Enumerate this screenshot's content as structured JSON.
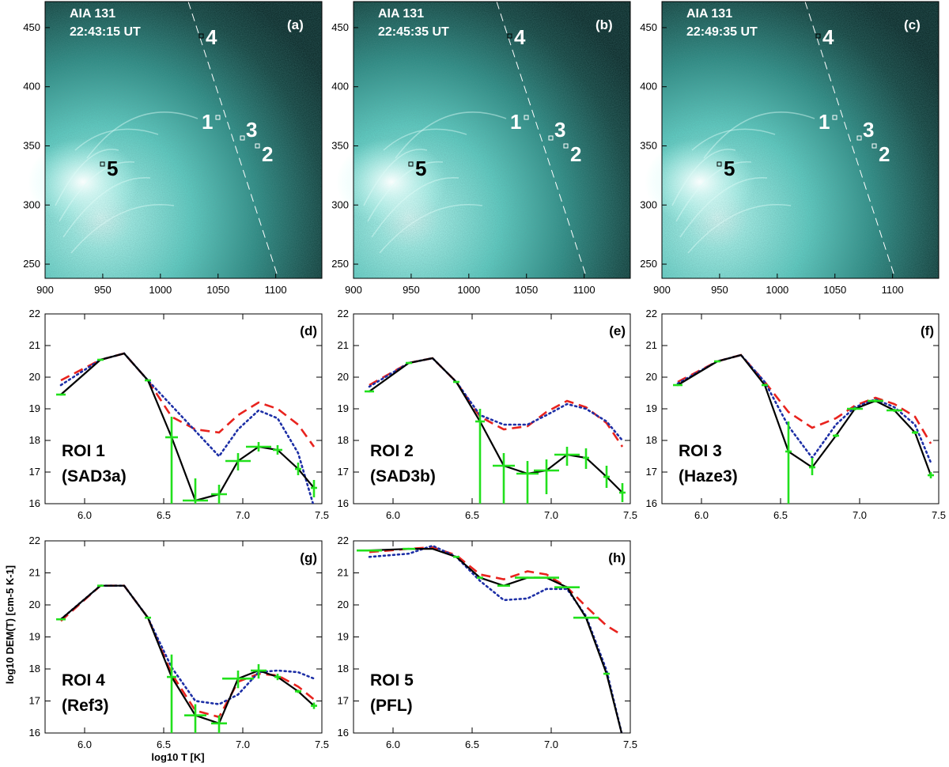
{
  "figure": {
    "xaxis_label": "log10 T [K]",
    "yaxis_label": "log10 DEM(T) [cm-5 K-1]"
  },
  "images": [
    {
      "instrument": "AIA 131",
      "time": "22:43:15 UT",
      "panel": "(a)"
    },
    {
      "instrument": "AIA 131",
      "time": "22:45:35 UT",
      "panel": "(b)"
    },
    {
      "instrument": "AIA 131",
      "time": "22:49:35 UT",
      "panel": "(c)"
    }
  ],
  "image_axes": {
    "x_ticks": [
      "900",
      "950",
      "1000",
      "1050",
      "1100"
    ],
    "y_ticks": [
      "450",
      "400",
      "350",
      "300",
      "250"
    ],
    "xlim": [
      900,
      1140
    ],
    "ylim": [
      238,
      472
    ]
  },
  "roi_markers": [
    {
      "label": "4",
      "x": 1035,
      "y": 451
    },
    {
      "label": "1",
      "x": 1057,
      "y": 380
    },
    {
      "label": "3",
      "x": 1073,
      "y": 362
    },
    {
      "label": "2",
      "x": 1086,
      "y": 355
    },
    {
      "label": "5",
      "x": 952,
      "y": 340
    }
  ],
  "colors": {
    "image_bg": "#0b2a28",
    "glow": "#7fe3d8",
    "curve": "#000000",
    "dashed": "#e8231e",
    "dotted": "#1d2fa6",
    "errorbar": "#22e01d"
  },
  "chart_data": [
    {
      "panel": "(d)",
      "type": "line",
      "title": "ROI 1",
      "subtitle": "(SAD3a)",
      "xlim": [
        5.75,
        7.5
      ],
      "ylim": [
        16,
        22
      ],
      "x_ticks": [
        "6.0",
        "6.5",
        "7.0",
        "7.5"
      ],
      "y_ticks": [
        "16",
        "17",
        "18",
        "19",
        "20",
        "21",
        "22"
      ],
      "series": [
        {
          "name": "DEM",
          "x": [
            5.85,
            6.1,
            6.25,
            6.4,
            6.55,
            6.7,
            6.85,
            6.97,
            7.1,
            7.22,
            7.35,
            7.45
          ],
          "values": [
            19.45,
            20.55,
            20.75,
            19.9,
            18.1,
            16.1,
            16.3,
            17.35,
            17.8,
            17.7,
            17.1,
            16.5
          ]
        },
        {
          "name": "dashed",
          "x": [
            5.85,
            6.1,
            6.25,
            6.4,
            6.55,
            6.7,
            6.85,
            6.97,
            7.1,
            7.22,
            7.35,
            7.45
          ],
          "values": [
            19.9,
            20.55,
            20.75,
            19.9,
            18.75,
            18.35,
            18.25,
            18.8,
            19.2,
            19.0,
            18.5,
            17.8
          ]
        },
        {
          "name": "dotted",
          "x": [
            5.85,
            6.1,
            6.25,
            6.4,
            6.85,
            6.97,
            7.1,
            7.22,
            7.35,
            7.45
          ],
          "values": [
            19.75,
            20.55,
            20.75,
            19.9,
            17.5,
            18.35,
            18.95,
            18.7,
            17.6,
            15.9
          ]
        }
      ],
      "errorbars": [
        {
          "x": 5.85,
          "y": 19.45,
          "xerr": 0.03,
          "ylo": 19.42,
          "yhi": 19.48
        },
        {
          "x": 6.1,
          "y": 20.55,
          "xerr": 0.02,
          "ylo": 20.52,
          "yhi": 20.58
        },
        {
          "x": 6.4,
          "y": 19.9,
          "xerr": 0.02,
          "ylo": 19.87,
          "yhi": 19.93
        },
        {
          "x": 6.55,
          "y": 18.1,
          "xerr": 0.04,
          "ylo": 16.0,
          "yhi": 18.75
        },
        {
          "x": 6.7,
          "y": 16.1,
          "xerr": 0.08,
          "ylo": 16.0,
          "yhi": 16.8
        },
        {
          "x": 6.85,
          "y": 16.3,
          "xerr": 0.05,
          "ylo": 16.0,
          "yhi": 16.6
        },
        {
          "x": 6.97,
          "y": 17.35,
          "xerr": 0.08,
          "ylo": 17.05,
          "yhi": 17.6
        },
        {
          "x": 7.1,
          "y": 17.8,
          "xerr": 0.08,
          "ylo": 17.65,
          "yhi": 17.95
        },
        {
          "x": 7.22,
          "y": 17.7,
          "xerr": 0.03,
          "ylo": 17.55,
          "yhi": 17.85
        },
        {
          "x": 7.35,
          "y": 17.1,
          "xerr": 0.02,
          "ylo": 16.9,
          "yhi": 17.3
        },
        {
          "x": 7.45,
          "y": 16.5,
          "xerr": 0.02,
          "ylo": 16.2,
          "yhi": 16.75
        }
      ]
    },
    {
      "panel": "(e)",
      "type": "line",
      "title": "ROI 2",
      "subtitle": "(SAD3b)",
      "xlim": [
        5.75,
        7.5
      ],
      "ylim": [
        16,
        22
      ],
      "x_ticks": [
        "6.0",
        "6.5",
        "7.0",
        "7.5"
      ],
      "y_ticks": [
        "16",
        "17",
        "18",
        "19",
        "20",
        "21",
        "22"
      ],
      "series": [
        {
          "name": "DEM",
          "x": [
            5.85,
            6.1,
            6.25,
            6.4,
            6.55,
            6.7,
            6.85,
            6.97,
            7.1,
            7.22,
            7.35,
            7.45
          ],
          "values": [
            19.55,
            20.45,
            20.6,
            19.85,
            18.6,
            17.2,
            16.95,
            17.05,
            17.55,
            17.45,
            16.85,
            16.35
          ]
        },
        {
          "name": "dashed",
          "x": [
            5.85,
            6.1,
            6.25,
            6.4,
            6.55,
            6.7,
            6.85,
            6.97,
            7.1,
            7.22,
            7.35,
            7.45
          ],
          "values": [
            19.75,
            20.45,
            20.6,
            19.85,
            18.75,
            18.35,
            18.45,
            18.9,
            19.25,
            19.05,
            18.55,
            17.8
          ]
        },
        {
          "name": "dotted",
          "x": [
            5.85,
            6.1,
            6.25,
            6.4,
            6.55,
            6.7,
            6.85,
            6.97,
            7.1,
            7.22,
            7.35,
            7.45
          ],
          "values": [
            19.7,
            20.45,
            20.6,
            19.85,
            18.8,
            18.5,
            18.5,
            18.8,
            19.15,
            19.0,
            18.6,
            18.0
          ]
        }
      ],
      "errorbars": [
        {
          "x": 5.85,
          "y": 19.55,
          "xerr": 0.03,
          "ylo": 19.52,
          "yhi": 19.58
        },
        {
          "x": 6.1,
          "y": 20.45,
          "xerr": 0.02,
          "ylo": 20.42,
          "yhi": 20.48
        },
        {
          "x": 6.4,
          "y": 19.85,
          "xerr": 0.02,
          "ylo": 19.82,
          "yhi": 19.88
        },
        {
          "x": 6.55,
          "y": 18.6,
          "xerr": 0.03,
          "ylo": 16.0,
          "yhi": 19.0
        },
        {
          "x": 6.7,
          "y": 17.2,
          "xerr": 0.07,
          "ylo": 16.0,
          "yhi": 17.6
        },
        {
          "x": 6.85,
          "y": 16.95,
          "xerr": 0.07,
          "ylo": 16.0,
          "yhi": 17.35
        },
        {
          "x": 6.97,
          "y": 17.05,
          "xerr": 0.08,
          "ylo": 16.3,
          "yhi": 17.4
        },
        {
          "x": 7.1,
          "y": 17.55,
          "xerr": 0.08,
          "ylo": 17.2,
          "yhi": 17.8
        },
        {
          "x": 7.22,
          "y": 17.45,
          "xerr": 0.02,
          "ylo": 17.1,
          "yhi": 17.75
        },
        {
          "x": 7.35,
          "y": 16.85,
          "xerr": 0.02,
          "ylo": 16.5,
          "yhi": 17.2
        },
        {
          "x": 7.45,
          "y": 16.35,
          "xerr": 0.02,
          "ylo": 16.05,
          "yhi": 16.65
        }
      ]
    },
    {
      "panel": "(f)",
      "type": "line",
      "title": "ROI 3",
      "subtitle": "(Haze3)",
      "xlim": [
        5.75,
        7.5
      ],
      "ylim": [
        16,
        22
      ],
      "x_ticks": [
        "6.0",
        "6.5",
        "7.0",
        "7.5"
      ],
      "y_ticks": [
        "16",
        "17",
        "18",
        "19",
        "20",
        "21",
        "22"
      ],
      "series": [
        {
          "name": "DEM",
          "x": [
            5.85,
            6.1,
            6.25,
            6.4,
            6.55,
            6.7,
            6.85,
            6.97,
            7.1,
            7.22,
            7.35,
            7.45
          ],
          "values": [
            19.75,
            20.5,
            20.7,
            19.75,
            17.65,
            17.15,
            18.15,
            19.0,
            19.25,
            18.95,
            18.25,
            16.9
          ]
        },
        {
          "name": "dashed",
          "x": [
            5.85,
            6.1,
            6.25,
            6.4,
            6.55,
            6.7,
            6.85,
            6.97,
            7.1,
            7.22,
            7.35,
            7.45
          ],
          "values": [
            19.85,
            20.5,
            20.7,
            19.85,
            18.9,
            18.4,
            18.7,
            19.1,
            19.35,
            19.15,
            18.75,
            17.9
          ]
        },
        {
          "name": "dotted",
          "x": [
            5.85,
            6.1,
            6.25,
            6.4,
            6.55,
            6.7,
            6.85,
            6.97,
            7.1,
            7.22,
            7.35,
            7.45
          ],
          "values": [
            19.8,
            20.5,
            20.7,
            19.85,
            18.45,
            17.45,
            18.5,
            19.05,
            19.3,
            19.05,
            18.5,
            17.3
          ]
        }
      ],
      "errorbars": [
        {
          "x": 5.85,
          "y": 19.75,
          "xerr": 0.03,
          "ylo": 19.72,
          "yhi": 19.78
        },
        {
          "x": 6.1,
          "y": 20.5,
          "xerr": 0.02,
          "ylo": 20.47,
          "yhi": 20.53
        },
        {
          "x": 6.4,
          "y": 19.75,
          "xerr": 0.02,
          "ylo": 19.72,
          "yhi": 19.78
        },
        {
          "x": 6.55,
          "y": 17.65,
          "xerr": 0.02,
          "ylo": 16.0,
          "yhi": 18.6
        },
        {
          "x": 6.7,
          "y": 17.15,
          "xerr": 0.02,
          "ylo": 16.9,
          "yhi": 17.45
        },
        {
          "x": 6.85,
          "y": 18.15,
          "xerr": 0.02,
          "ylo": 18.1,
          "yhi": 18.2
        },
        {
          "x": 6.97,
          "y": 19.0,
          "xerr": 0.05,
          "ylo": 18.95,
          "yhi": 19.05
        },
        {
          "x": 7.1,
          "y": 19.25,
          "xerr": 0.05,
          "ylo": 19.2,
          "yhi": 19.3
        },
        {
          "x": 7.22,
          "y": 18.95,
          "xerr": 0.05,
          "ylo": 18.9,
          "yhi": 19.0
        },
        {
          "x": 7.35,
          "y": 18.25,
          "xerr": 0.02,
          "ylo": 18.2,
          "yhi": 18.3
        },
        {
          "x": 7.45,
          "y": 16.9,
          "xerr": 0.02,
          "ylo": 16.8,
          "yhi": 17.0
        }
      ]
    },
    {
      "panel": "(g)",
      "type": "line",
      "title": "ROI 4",
      "subtitle": "(Ref3)",
      "xlim": [
        5.75,
        7.5
      ],
      "ylim": [
        16,
        22
      ],
      "x_ticks": [
        "6.0",
        "6.5",
        "7.0",
        "7.5"
      ],
      "y_ticks": [
        "16",
        "17",
        "18",
        "19",
        "20",
        "21",
        "22"
      ],
      "series": [
        {
          "name": "DEM",
          "x": [
            5.85,
            6.1,
            6.25,
            6.4,
            6.55,
            6.7,
            6.85,
            6.97,
            7.1,
            7.22,
            7.35,
            7.45
          ],
          "values": [
            19.55,
            20.6,
            20.6,
            19.6,
            17.75,
            16.55,
            16.3,
            17.7,
            17.95,
            17.75,
            17.3,
            16.85
          ]
        },
        {
          "name": "dashed",
          "x": [
            5.85,
            6.1,
            6.25,
            6.4,
            6.55,
            6.7,
            6.85,
            6.97,
            7.1,
            7.22,
            7.35,
            7.45
          ],
          "values": [
            19.5,
            20.6,
            20.6,
            19.6,
            17.85,
            16.7,
            16.5,
            17.6,
            17.85,
            17.8,
            17.45,
            17.05
          ]
        },
        {
          "name": "dotted",
          "x": [
            5.85,
            6.1,
            6.25,
            6.4,
            6.55,
            6.7,
            6.85,
            6.97,
            7.1,
            7.22,
            7.35,
            7.45
          ],
          "values": [
            19.55,
            20.6,
            20.6,
            19.6,
            18.05,
            17.0,
            16.9,
            17.2,
            17.9,
            17.95,
            17.9,
            17.7
          ]
        }
      ],
      "errorbars": [
        {
          "x": 5.85,
          "y": 19.55,
          "xerr": 0.03,
          "ylo": 19.52,
          "yhi": 19.58
        },
        {
          "x": 6.1,
          "y": 20.6,
          "xerr": 0.02,
          "ylo": 20.57,
          "yhi": 20.63
        },
        {
          "x": 6.4,
          "y": 19.6,
          "xerr": 0.02,
          "ylo": 19.57,
          "yhi": 19.63
        },
        {
          "x": 6.55,
          "y": 17.75,
          "xerr": 0.03,
          "ylo": 16.0,
          "yhi": 18.45
        },
        {
          "x": 6.7,
          "y": 16.55,
          "xerr": 0.07,
          "ylo": 16.0,
          "yhi": 16.9
        },
        {
          "x": 6.85,
          "y": 16.3,
          "xerr": 0.05,
          "ylo": 16.0,
          "yhi": 16.55
        },
        {
          "x": 6.97,
          "y": 17.7,
          "xerr": 0.1,
          "ylo": 17.4,
          "yhi": 17.95
        },
        {
          "x": 7.1,
          "y": 17.95,
          "xerr": 0.05,
          "ylo": 17.7,
          "yhi": 18.15
        },
        {
          "x": 7.22,
          "y": 17.75,
          "xerr": 0.02,
          "ylo": 17.65,
          "yhi": 17.85
        },
        {
          "x": 7.35,
          "y": 17.3,
          "xerr": 0.02,
          "ylo": 17.25,
          "yhi": 17.35
        },
        {
          "x": 7.45,
          "y": 16.85,
          "xerr": 0.02,
          "ylo": 16.75,
          "yhi": 16.95
        }
      ]
    },
    {
      "panel": "(h)",
      "type": "line",
      "title": "ROI 5",
      "subtitle": "(PFL)",
      "xlim": [
        5.75,
        7.5
      ],
      "ylim": [
        16,
        22
      ],
      "x_ticks": [
        "6.0",
        "6.5",
        "7.0",
        "7.5"
      ],
      "y_ticks": [
        "16",
        "17",
        "18",
        "19",
        "20",
        "21",
        "22"
      ],
      "series": [
        {
          "name": "DEM",
          "x": [
            5.85,
            6.1,
            6.25,
            6.4,
            6.55,
            6.7,
            6.85,
            6.97,
            7.1,
            7.22,
            7.35,
            7.45
          ],
          "values": [
            21.7,
            21.75,
            21.75,
            21.5,
            20.85,
            20.6,
            20.85,
            20.85,
            20.55,
            19.6,
            17.85,
            15.9
          ]
        },
        {
          "name": "dashed",
          "x": [
            5.85,
            6.1,
            6.25,
            6.4,
            6.55,
            6.7,
            6.85,
            6.97,
            7.1,
            7.22,
            7.35,
            7.45
          ],
          "values": [
            21.65,
            21.75,
            21.8,
            21.55,
            20.95,
            20.8,
            21.05,
            20.95,
            20.55,
            19.95,
            19.35,
            19.05
          ]
        },
        {
          "name": "dotted",
          "x": [
            5.85,
            6.1,
            6.25,
            6.4,
            6.55,
            6.7,
            6.85,
            6.97,
            7.1,
            7.22,
            7.35,
            7.45
          ],
          "values": [
            21.5,
            21.6,
            21.85,
            21.5,
            20.75,
            20.15,
            20.2,
            20.5,
            20.5,
            19.65,
            17.95,
            15.9
          ]
        }
      ],
      "errorbars": [
        {
          "x": 5.85,
          "y": 21.7,
          "xerr": 0.08,
          "ylo": 21.67,
          "yhi": 21.73
        },
        {
          "x": 6.1,
          "y": 21.75,
          "xerr": 0.04,
          "ylo": 21.72,
          "yhi": 21.78
        },
        {
          "x": 6.4,
          "y": 21.5,
          "xerr": 0.02,
          "ylo": 21.47,
          "yhi": 21.53
        },
        {
          "x": 6.55,
          "y": 20.85,
          "xerr": 0.02,
          "ylo": 20.82,
          "yhi": 20.88
        },
        {
          "x": 6.7,
          "y": 20.6,
          "xerr": 0.04,
          "ylo": 20.57,
          "yhi": 20.63
        },
        {
          "x": 6.85,
          "y": 20.85,
          "xerr": 0.08,
          "ylo": 20.82,
          "yhi": 20.88
        },
        {
          "x": 6.97,
          "y": 20.85,
          "xerr": 0.08,
          "ylo": 20.82,
          "yhi": 20.88
        },
        {
          "x": 7.1,
          "y": 20.55,
          "xerr": 0.08,
          "ylo": 20.52,
          "yhi": 20.58
        },
        {
          "x": 7.22,
          "y": 19.6,
          "xerr": 0.08,
          "ylo": 19.57,
          "yhi": 19.63
        },
        {
          "x": 7.35,
          "y": 17.85,
          "xerr": 0.02,
          "ylo": 17.82,
          "yhi": 17.88
        }
      ]
    }
  ]
}
